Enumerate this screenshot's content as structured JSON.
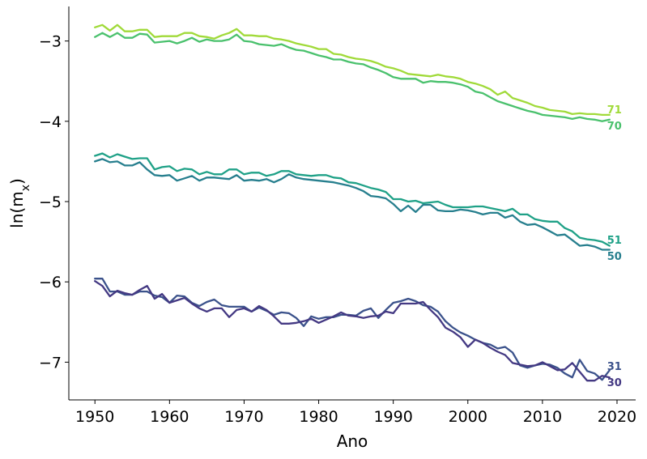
{
  "chart_data": {
    "type": "line",
    "title": "",
    "xlabel": "Ano",
    "ylabel": "ln(m",
    "ylabel_sub": "x",
    "ylabel_close": ")",
    "xlim": [
      1946.5,
      2022.5
    ],
    "ylim": [
      -7.47,
      -2.57
    ],
    "xticks": [
      1950,
      1960,
      1970,
      1980,
      1990,
      2000,
      2010,
      2020
    ],
    "yticks": [
      -3,
      -4,
      -5,
      -6,
      -7
    ],
    "ytick_labels": [
      "−3",
      "−4",
      "−5",
      "−6",
      "−7"
    ],
    "grid": false,
    "x": [
      1950,
      1951,
      1952,
      1953,
      1954,
      1955,
      1956,
      1957,
      1958,
      1959,
      1960,
      1961,
      1962,
      1963,
      1964,
      1965,
      1966,
      1967,
      1968,
      1969,
      1970,
      1971,
      1972,
      1973,
      1974,
      1975,
      1976,
      1977,
      1978,
      1979,
      1980,
      1981,
      1982,
      1983,
      1984,
      1985,
      1986,
      1987,
      1988,
      1989,
      1990,
      1991,
      1992,
      1993,
      1994,
      1995,
      1996,
      1997,
      1998,
      1999,
      2000,
      2001,
      2002,
      2003,
      2004,
      2005,
      2006,
      2007,
      2008,
      2009,
      2010,
      2011,
      2012,
      2013,
      2014,
      2015,
      2016,
      2017,
      2018,
      2019
    ],
    "series": [
      {
        "name": "71",
        "color": "#a0da39",
        "values": [
          -2.83,
          -2.8,
          -2.87,
          -2.8,
          -2.88,
          -2.88,
          -2.86,
          -2.86,
          -2.95,
          -2.94,
          -2.94,
          -2.94,
          -2.9,
          -2.9,
          -2.94,
          -2.95,
          -2.97,
          -2.93,
          -2.9,
          -2.85,
          -2.93,
          -2.93,
          -2.94,
          -2.94,
          -2.97,
          -2.98,
          -3.0,
          -3.03,
          -3.05,
          -3.07,
          -3.1,
          -3.1,
          -3.16,
          -3.17,
          -3.2,
          -3.22,
          -3.23,
          -3.25,
          -3.28,
          -3.32,
          -3.34,
          -3.37,
          -3.41,
          -3.42,
          -3.43,
          -3.44,
          -3.42,
          -3.44,
          -3.45,
          -3.47,
          -3.51,
          -3.53,
          -3.56,
          -3.6,
          -3.67,
          -3.63,
          -3.71,
          -3.74,
          -3.77,
          -3.81,
          -3.83,
          -3.86,
          -3.87,
          -3.88,
          -3.91,
          -3.9,
          -3.91,
          -3.91,
          -3.92,
          -3.92
        ]
      },
      {
        "name": "70",
        "color": "#4ac16d",
        "values": [
          -2.95,
          -2.9,
          -2.95,
          -2.9,
          -2.96,
          -2.96,
          -2.91,
          -2.92,
          -3.02,
          -3.01,
          -3.0,
          -3.03,
          -3.0,
          -2.96,
          -3.01,
          -2.98,
          -3.0,
          -3.0,
          -2.98,
          -2.92,
          -3.0,
          -3.01,
          -3.04,
          -3.05,
          -3.06,
          -3.04,
          -3.08,
          -3.11,
          -3.12,
          -3.15,
          -3.18,
          -3.2,
          -3.23,
          -3.23,
          -3.26,
          -3.28,
          -3.29,
          -3.33,
          -3.36,
          -3.4,
          -3.45,
          -3.47,
          -3.47,
          -3.47,
          -3.52,
          -3.5,
          -3.51,
          -3.51,
          -3.52,
          -3.54,
          -3.57,
          -3.63,
          -3.65,
          -3.7,
          -3.75,
          -3.78,
          -3.81,
          -3.84,
          -3.87,
          -3.89,
          -3.92,
          -3.93,
          -3.94,
          -3.95,
          -3.97,
          -3.95,
          -3.97,
          -3.98,
          -4.0,
          -3.98
        ]
      },
      {
        "name": "51",
        "color": "#1fa187",
        "values": [
          -4.43,
          -4.4,
          -4.45,
          -4.41,
          -4.44,
          -4.47,
          -4.46,
          -4.46,
          -4.6,
          -4.57,
          -4.56,
          -4.62,
          -4.59,
          -4.6,
          -4.66,
          -4.63,
          -4.66,
          -4.66,
          -4.6,
          -4.6,
          -4.66,
          -4.64,
          -4.64,
          -4.68,
          -4.66,
          -4.62,
          -4.62,
          -4.66,
          -4.67,
          -4.68,
          -4.67,
          -4.67,
          -4.7,
          -4.71,
          -4.76,
          -4.77,
          -4.8,
          -4.83,
          -4.85,
          -4.88,
          -4.97,
          -4.97,
          -5.0,
          -4.99,
          -5.02,
          -5.01,
          -5.0,
          -5.04,
          -5.07,
          -5.07,
          -5.07,
          -5.06,
          -5.06,
          -5.08,
          -5.1,
          -5.12,
          -5.09,
          -5.16,
          -5.16,
          -5.22,
          -5.24,
          -5.25,
          -5.25,
          -5.33,
          -5.37,
          -5.45,
          -5.47,
          -5.48,
          -5.5,
          -5.55
        ]
      },
      {
        "name": "50",
        "color": "#277f8e",
        "values": [
          -4.5,
          -4.47,
          -4.51,
          -4.5,
          -4.55,
          -4.55,
          -4.51,
          -4.6,
          -4.67,
          -4.68,
          -4.67,
          -4.74,
          -4.71,
          -4.68,
          -4.74,
          -4.7,
          -4.7,
          -4.71,
          -4.72,
          -4.67,
          -4.74,
          -4.73,
          -4.74,
          -4.72,
          -4.76,
          -4.72,
          -4.66,
          -4.7,
          -4.72,
          -4.73,
          -4.74,
          -4.75,
          -4.76,
          -4.78,
          -4.8,
          -4.83,
          -4.87,
          -4.93,
          -4.94,
          -4.96,
          -5.03,
          -5.12,
          -5.05,
          -5.13,
          -5.04,
          -5.04,
          -5.11,
          -5.12,
          -5.12,
          -5.1,
          -5.11,
          -5.13,
          -5.16,
          -5.14,
          -5.14,
          -5.2,
          -5.17,
          -5.25,
          -5.29,
          -5.28,
          -5.32,
          -5.37,
          -5.42,
          -5.41,
          -5.48,
          -5.55,
          -5.54,
          -5.56,
          -5.6,
          -5.6
        ]
      },
      {
        "name": "31",
        "color": "#3b528b",
        "values": [
          -5.96,
          -5.96,
          -6.12,
          -6.12,
          -6.16,
          -6.16,
          -6.12,
          -6.12,
          -6.17,
          -6.19,
          -6.26,
          -6.17,
          -6.18,
          -6.26,
          -6.3,
          -6.25,
          -6.22,
          -6.29,
          -6.31,
          -6.31,
          -6.31,
          -6.37,
          -6.32,
          -6.36,
          -6.41,
          -6.38,
          -6.39,
          -6.45,
          -6.55,
          -6.43,
          -6.46,
          -6.44,
          -6.44,
          -6.41,
          -6.41,
          -6.42,
          -6.36,
          -6.33,
          -6.45,
          -6.35,
          -6.26,
          -6.24,
          -6.21,
          -6.24,
          -6.29,
          -6.31,
          -6.37,
          -6.49,
          -6.57,
          -6.63,
          -6.67,
          -6.72,
          -6.76,
          -6.78,
          -6.83,
          -6.81,
          -6.88,
          -7.04,
          -7.07,
          -7.04,
          -7.02,
          -7.03,
          -7.07,
          -7.14,
          -7.19,
          -6.97,
          -7.11,
          -7.14,
          -7.22,
          -7.1
        ]
      },
      {
        "name": "30",
        "color": "#443983",
        "values": [
          -5.99,
          -6.05,
          -6.18,
          -6.11,
          -6.14,
          -6.16,
          -6.1,
          -6.05,
          -6.21,
          -6.15,
          -6.26,
          -6.23,
          -6.2,
          -6.27,
          -6.33,
          -6.37,
          -6.33,
          -6.33,
          -6.44,
          -6.35,
          -6.33,
          -6.37,
          -6.3,
          -6.35,
          -6.43,
          -6.52,
          -6.52,
          -6.51,
          -6.49,
          -6.46,
          -6.51,
          -6.47,
          -6.43,
          -6.38,
          -6.42,
          -6.43,
          -6.45,
          -6.43,
          -6.42,
          -6.37,
          -6.39,
          -6.27,
          -6.27,
          -6.27,
          -6.25,
          -6.35,
          -6.44,
          -6.57,
          -6.62,
          -6.69,
          -6.81,
          -6.72,
          -6.76,
          -6.82,
          -6.87,
          -6.91,
          -7.01,
          -7.03,
          -7.05,
          -7.04,
          -7.0,
          -7.05,
          -7.1,
          -7.09,
          -7.01,
          -7.12,
          -7.23,
          -7.23,
          -7.17,
          -7.19
        ]
      }
    ]
  }
}
